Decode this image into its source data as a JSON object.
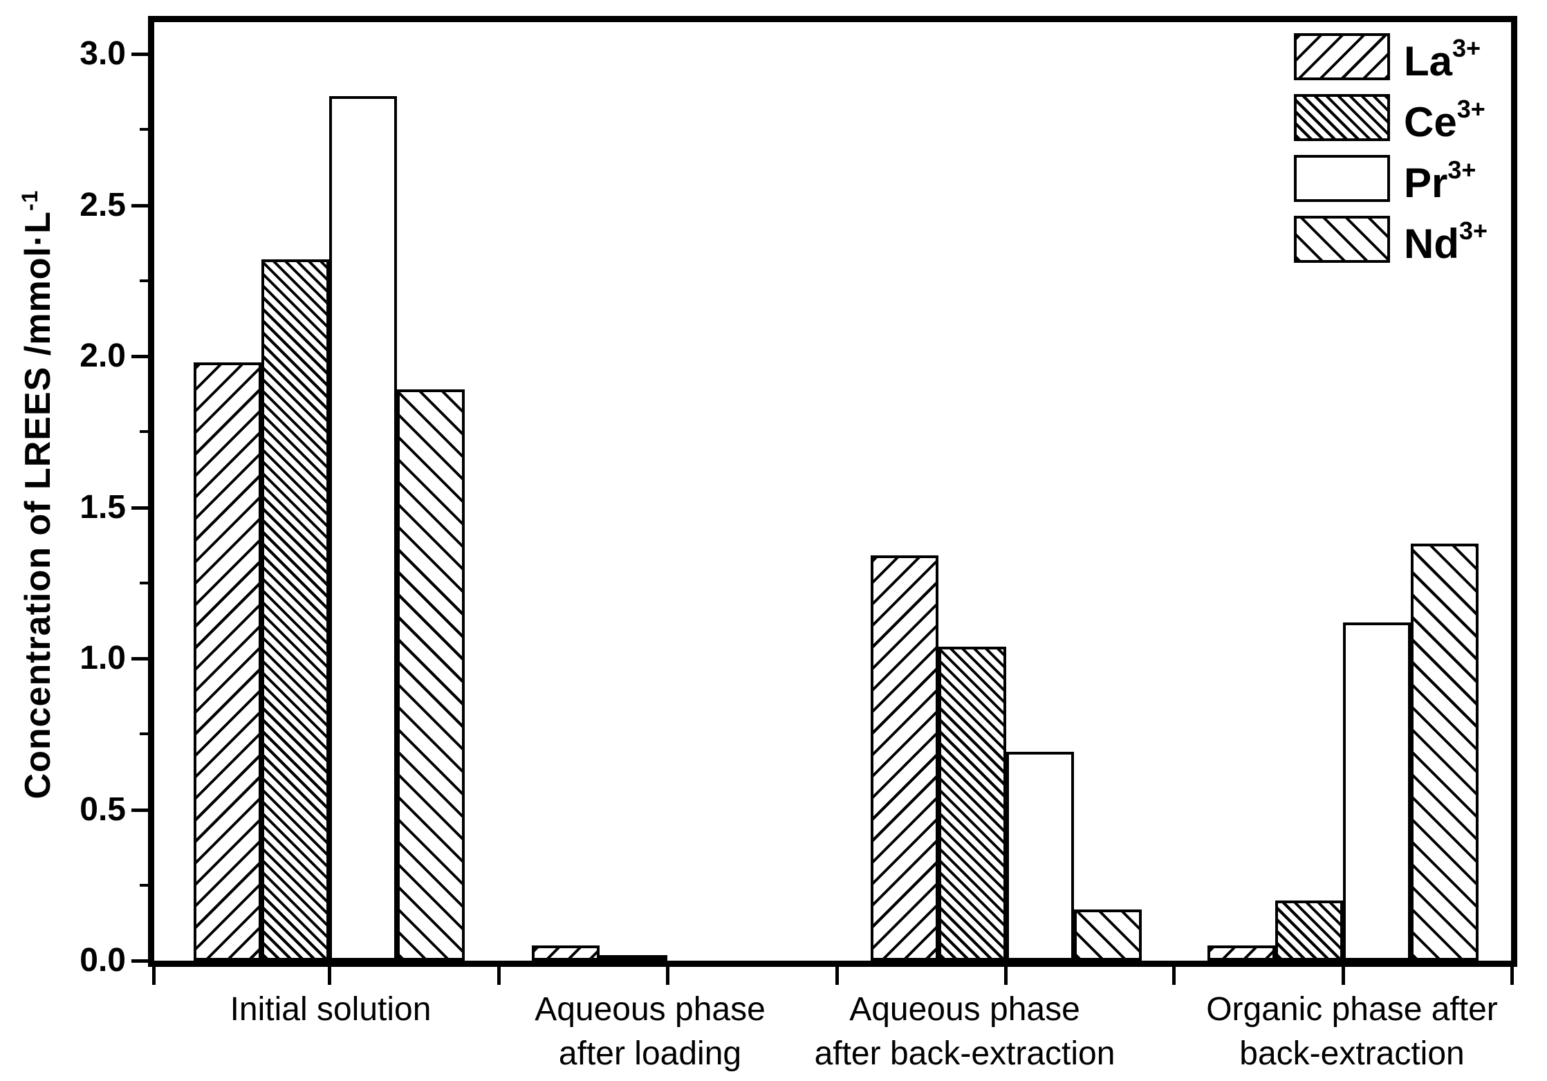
{
  "chart_data": {
    "type": "bar",
    "title": "",
    "ylabel": {
      "text": "Concentration of LREES /mmol·L",
      "sup": "-1",
      "full": "Concentration of LREES /mmol·L^-1"
    },
    "xlabel": "",
    "units": "mmol/L",
    "y_axis": {
      "min": 0.0,
      "max": 3.0,
      "major_step": 0.5,
      "minor_step": 0.25,
      "tick_labels": [
        "0.0",
        "0.5",
        "1.0",
        "1.5",
        "2.0",
        "2.5",
        "3.0"
      ]
    },
    "grid": false,
    "legend_position": "top-right-inside",
    "line_color": "#000000",
    "bar_fill_color": "#ffffff",
    "categories": [
      "Initial solution",
      "Aqueous phase after loading",
      "Aqueous phase after back-extraction",
      "Organic phase after back-extraction"
    ],
    "categories_lines": [
      [
        "Initial solution"
      ],
      [
        "Aqueous phase",
        "after loading"
      ],
      [
        "Aqueous phase",
        "after back-extraction"
      ],
      [
        "Organic phase after",
        "back-extraction"
      ]
    ],
    "series": [
      {
        "name": "La3+",
        "base": "La",
        "sup": "3+",
        "hatch": "diag-up-sparse",
        "values": [
          1.98,
          0.05,
          1.34,
          0.05
        ]
      },
      {
        "name": "Ce3+",
        "base": "Ce",
        "sup": "3+",
        "hatch": "diag-down-dense",
        "values": [
          2.32,
          0.015,
          1.04,
          0.2
        ]
      },
      {
        "name": "Pr3+",
        "base": "Pr",
        "sup": "3+",
        "hatch": "none",
        "values": [
          2.86,
          0.0,
          0.69,
          1.12
        ]
      },
      {
        "name": "Nd3+",
        "base": "Nd",
        "sup": "3+",
        "hatch": "diag-down-sparse",
        "values": [
          1.89,
          0.0,
          0.17,
          1.38
        ]
      }
    ]
  }
}
